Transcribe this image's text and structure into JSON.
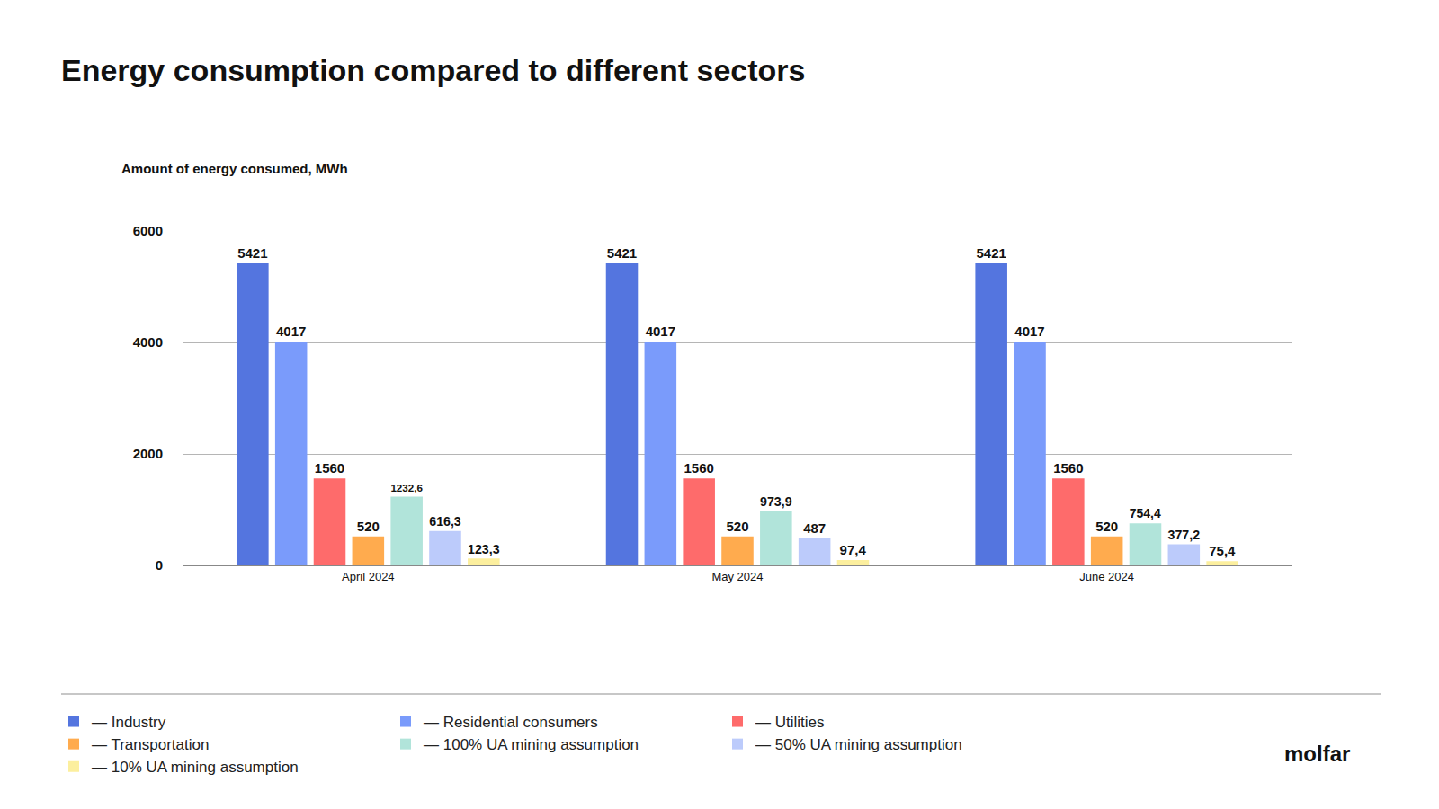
{
  "chart_data": {
    "type": "bar",
    "title": "Energy consumption compared to different sectors",
    "y_label": "Amount of energy consumed, MWh",
    "categories": [
      "April 2024",
      "May 2024",
      "June 2024"
    ],
    "series": [
      {
        "name": "— Industry",
        "color": "#5475df",
        "values": [
          5421,
          5421,
          5421
        ]
      },
      {
        "name": "— Residential consumers",
        "color": "#7a9bfb",
        "values": [
          4017,
          4017,
          4017
        ]
      },
      {
        "name": "— Utilities",
        "color": "#fe6b6b",
        "values": [
          1560,
          1560,
          1560
        ]
      },
      {
        "name": "— Transportation",
        "color": "#ffab4e",
        "values": [
          520,
          520,
          520
        ]
      },
      {
        "name": "— 100% UA mining assumption",
        "color": "#b1e4da",
        "values": [
          1232.6,
          973.9,
          754.4
        ],
        "value_labels": [
          "1232,6",
          "973,9",
          "754,4"
        ]
      },
      {
        "name": "— 50% UA mining assumption",
        "color": "#bccbfb",
        "values": [
          616.3,
          487,
          377.2
        ],
        "value_labels": [
          "616,3",
          "487",
          "377,2"
        ]
      },
      {
        "name": "— 10% UA mining assumption",
        "color": "#fcef9e",
        "values": [
          123.3,
          97.4,
          75.4
        ],
        "value_labels": [
          "123,3",
          "97,4",
          "75,4"
        ]
      }
    ],
    "ylim": [
      0,
      6000
    ],
    "yticks": [
      0,
      2000,
      4000,
      6000
    ],
    "grid": true,
    "legend": "bottom",
    "data_labels": true,
    "annotations": [
      "molfar"
    ]
  }
}
